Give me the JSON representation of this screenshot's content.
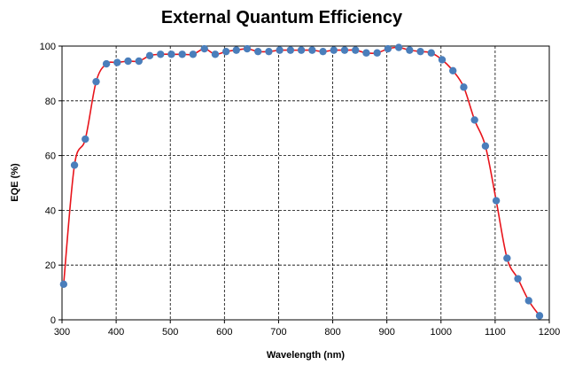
{
  "chart_data": {
    "type": "scatter",
    "title": "External Quantum Efficiency",
    "xlabel": "Wavelength (nm)",
    "ylabel": "EQE (%)",
    "xlim": [
      300,
      1200
    ],
    "ylim": [
      0,
      100
    ],
    "xticks": [
      300,
      400,
      500,
      600,
      700,
      800,
      900,
      1000,
      1100,
      1200
    ],
    "yticks": [
      0,
      20,
      40,
      60,
      80,
      100
    ],
    "grid": true,
    "legend": "none",
    "marker_color": "#4a7ebb",
    "line_color": "#e8141b",
    "series": [
      {
        "x": [
          303,
          323,
          343,
          363,
          382,
          402,
          422,
          442,
          462,
          482,
          502,
          522,
          542,
          563,
          583,
          603,
          622,
          642,
          662,
          682,
          702,
          722,
          742,
          762,
          782,
          802,
          822,
          842,
          862,
          882,
          902,
          922,
          942,
          962,
          982,
          1002,
          1022,
          1042,
          1062,
          1082,
          1102,
          1122,
          1142,
          1162,
          1182
        ],
        "y": [
          13,
          56.5,
          66,
          87,
          93.5,
          94,
          94.5,
          94.5,
          96.5,
          97,
          97,
          97,
          97,
          99,
          97,
          98,
          98.5,
          99,
          98,
          98,
          98.5,
          98.5,
          98.5,
          98.5,
          98,
          98.5,
          98.5,
          98.5,
          97.5,
          97.5,
          99,
          99.5,
          98.5,
          98,
          97.5,
          95,
          91,
          85,
          73,
          63.5,
          43.5,
          22.5,
          15,
          7,
          1.5
        ]
      }
    ]
  }
}
